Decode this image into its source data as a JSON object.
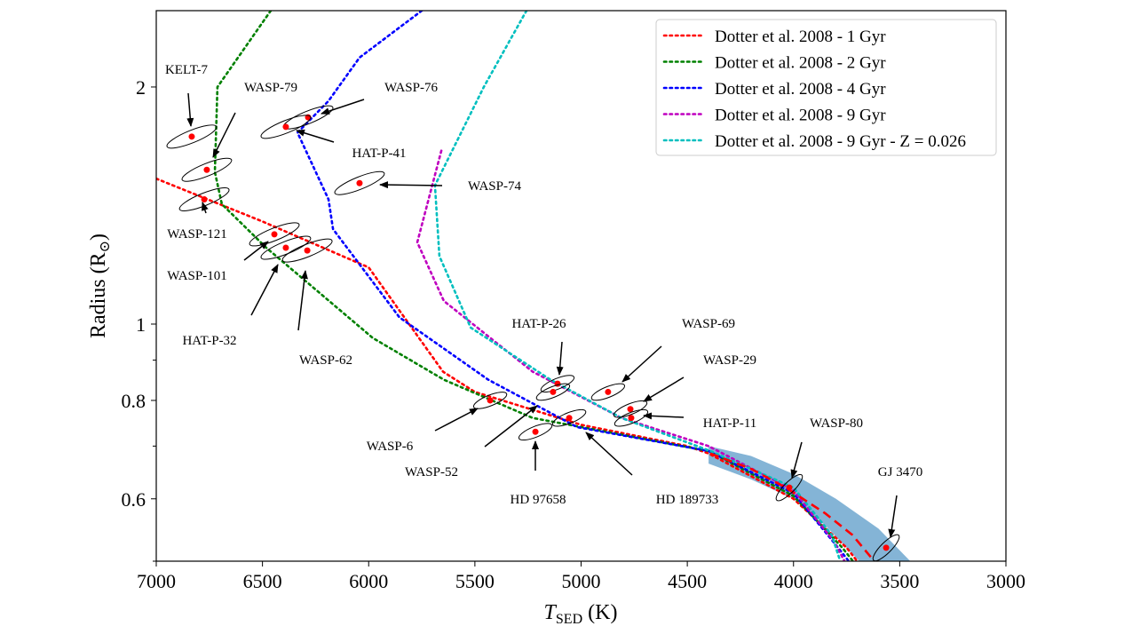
{
  "chart_data": {
    "type": "scatter",
    "title": "",
    "xlabel": "T",
    "xlabel_sub": "SED",
    "xlabel_unit": " (K)",
    "ylabel": "Radius (R",
    "ylabel_sym": "⊙",
    "ylabel_end": ")",
    "xlim": [
      7000,
      3000
    ],
    "ylim": [
      0.5,
      2.5
    ],
    "yscale": "log",
    "x_ticks": [
      7000,
      6500,
      6000,
      5500,
      5000,
      4500,
      4000,
      3500,
      3000
    ],
    "y_ticks": [
      0.6,
      0.8,
      1,
      2
    ],
    "y_minor_ticks": [
      0.5,
      0.7,
      0.9
    ],
    "grid": false,
    "legend_position": "top-right",
    "series": [
      {
        "name": "Dotter et al. 2008 - 1 Gyr",
        "color": "#ff0000",
        "style": "dotted",
        "points": [
          [
            7000,
            1.53
          ],
          [
            6500,
            1.35
          ],
          [
            6000,
            1.18
          ],
          [
            5650,
            0.87
          ],
          [
            5500,
            0.82
          ],
          [
            5000,
            0.745
          ],
          [
            4500,
            0.7
          ],
          [
            4400,
            0.685
          ],
          [
            4000,
            0.6
          ],
          [
            3750,
            0.52
          ],
          [
            3700,
            0.5
          ]
        ]
      },
      {
        "name": "Dotter et al. 2008 - 2 Gyr",
        "color": "#008000",
        "style": "dotted",
        "points": [
          [
            6461,
            2.5
          ],
          [
            6712,
            2.0
          ],
          [
            6724,
            1.56
          ],
          [
            6691,
            1.42
          ],
          [
            6482,
            1.25
          ],
          [
            5980,
            0.96
          ],
          [
            5646,
            0.85
          ],
          [
            5228,
            0.76
          ],
          [
            4400,
            0.69
          ],
          [
            4000,
            0.605
          ],
          [
            3770,
            0.52
          ],
          [
            3720,
            0.5
          ]
        ]
      },
      {
        "name": "Dotter et al. 2008 - 4 Gyr",
        "color": "#0000ff",
        "style": "dotted",
        "points": [
          [
            5750,
            2.5
          ],
          [
            6043,
            2.18
          ],
          [
            6189,
            1.92
          ],
          [
            6335,
            1.75
          ],
          [
            6189,
            1.44
          ],
          [
            6168,
            1.32
          ],
          [
            5855,
            1.02
          ],
          [
            5437,
            0.85
          ],
          [
            5019,
            0.74
          ],
          [
            4400,
            0.69
          ],
          [
            4000,
            0.61
          ],
          [
            3790,
            0.52
          ],
          [
            3740,
            0.5
          ]
        ]
      },
      {
        "name": "Dotter et al. 2008 - 9 Gyr",
        "color": "#bf00bf",
        "style": "dotted",
        "points": [
          [
            5658,
            1.66
          ],
          [
            5771,
            1.27
          ],
          [
            5646,
            1.07
          ],
          [
            5228,
            0.87
          ],
          [
            4810,
            0.76
          ],
          [
            4400,
            0.7
          ],
          [
            4000,
            0.615
          ],
          [
            3810,
            0.53
          ],
          [
            3760,
            0.5
          ]
        ]
      },
      {
        "name": "Dotter et al. 2008 - 9 Gyr - Z = 0.026",
        "color": "#00bfbf",
        "style": "dotted",
        "points": [
          [
            5257,
            2.5
          ],
          [
            5458,
            2.0
          ],
          [
            5688,
            1.5
          ],
          [
            5667,
            1.22
          ],
          [
            5520,
            0.99
          ],
          [
            5144,
            0.85
          ],
          [
            4810,
            0.76
          ],
          [
            4392,
            0.69
          ],
          [
            4000,
            0.62
          ],
          [
            3820,
            0.54
          ],
          [
            3780,
            0.5
          ]
        ]
      }
    ],
    "extension_line": {
      "color": "#ff0000",
      "style": "dashed",
      "points": [
        [
          4392,
          0.685
        ],
        [
          4200,
          0.655
        ],
        [
          4037,
          0.62
        ],
        [
          3850,
          0.575
        ],
        [
          3723,
          0.54
        ],
        [
          3620,
          0.5
        ]
      ]
    },
    "band": {
      "color": "#1f77b4",
      "upper": [
        [
          4400,
          0.7
        ],
        [
          4200,
          0.68
        ],
        [
          4000,
          0.645
        ],
        [
          3800,
          0.6
        ],
        [
          3600,
          0.55
        ],
        [
          3450,
          0.5
        ]
      ],
      "lower": [
        [
          4400,
          0.665
        ],
        [
          4200,
          0.635
        ],
        [
          4000,
          0.6
        ],
        [
          3850,
          0.555
        ],
        [
          3750,
          0.52
        ],
        [
          3690,
          0.5
        ]
      ]
    },
    "stars": [
      {
        "name": "KELT-7",
        "teff": 6833,
        "radius": 1.73
      },
      {
        "name": "WASP-79",
        "teff": 6762,
        "radius": 1.57
      },
      {
        "name": "WASP-121",
        "teff": 6774,
        "radius": 1.44
      },
      {
        "name": "WASP-76",
        "teff": 6285,
        "radius": 1.83
      },
      {
        "name": "HAT-P-41",
        "teff": 6390,
        "radius": 1.78
      },
      {
        "name": "WASP-74",
        "teff": 6043,
        "radius": 1.51
      },
      {
        "name": "WASP-101",
        "teff": 6444,
        "radius": 1.3
      },
      {
        "name": "HAT-P-32",
        "teff": 6390,
        "radius": 1.25
      },
      {
        "name": "WASP-62",
        "teff": 6289,
        "radius": 1.24
      },
      {
        "name": "HAT-P-26",
        "teff": 5111,
        "radius": 0.84
      },
      {
        "name": "WASP-69",
        "teff": 4873,
        "radius": 0.82
      },
      {
        "name": "WASP-29",
        "teff": 4768,
        "radius": 0.78
      },
      {
        "name": "HAT-P-11",
        "teff": 4764,
        "radius": 0.76
      },
      {
        "name": "WASP-6",
        "teff": 5428,
        "radius": 0.8
      },
      {
        "name": "WASP-52",
        "teff": 5132,
        "radius": 0.82
      },
      {
        "name": "HD 97658",
        "teff": 5215,
        "radius": 0.73
      },
      {
        "name": "HD 189733",
        "teff": 5056,
        "radius": 0.76
      },
      {
        "name": "WASP-80",
        "teff": 4020,
        "radius": 0.62
      },
      {
        "name": "GJ 3470",
        "teff": 3564,
        "radius": 0.52
      }
    ]
  }
}
